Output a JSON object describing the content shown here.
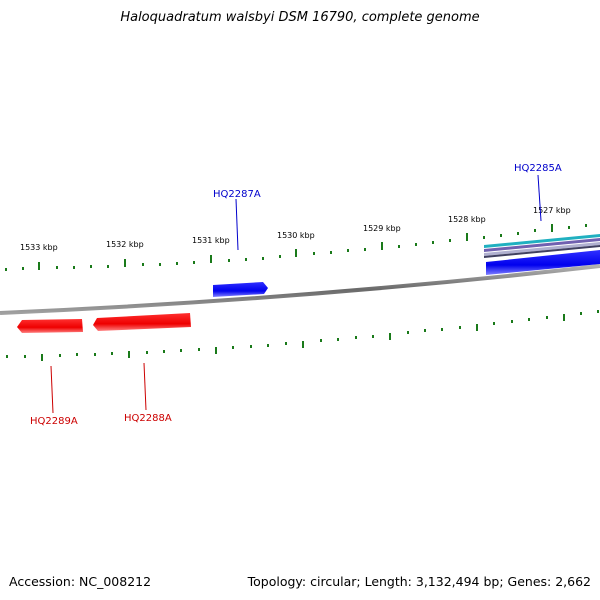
{
  "title": "Haloquadratum walsbyi DSM 16790, complete genome",
  "footer": {
    "accession": "Accession: NC_008212",
    "summary": "Topology: circular; Length: 3,132,494 bp; Genes: 2,662"
  },
  "colors": {
    "forward_gene": "#0000ff",
    "reverse_gene": "#ff0000",
    "tick": "#1a7a1a",
    "backbone": "#808080",
    "feature_cyan": "#20b0c0",
    "feature_purple": "#7060b0"
  },
  "scale_labels": [
    "1533 kbp",
    "1532 kbp",
    "1531 kbp",
    "1530 kbp",
    "1529 kbp",
    "1528 kbp",
    "1527 kbp"
  ],
  "genes": [
    {
      "name": "HQ2285A",
      "strand": "+"
    },
    {
      "name": "HQ2287A",
      "strand": "+"
    },
    {
      "name": "HQ2288A",
      "strand": "-"
    },
    {
      "name": "HQ2289A",
      "strand": "-"
    }
  ]
}
